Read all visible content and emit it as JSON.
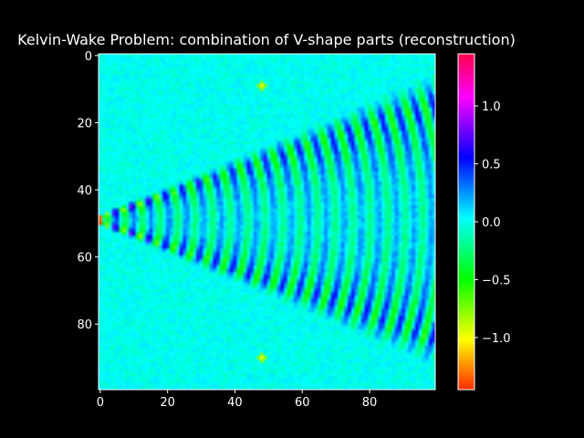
{
  "chart_data": {
    "type": "heatmap",
    "title": "Kelvin-Wake Problem: combination of V-shape parts (reconstruction)",
    "xlabel": "",
    "ylabel": "",
    "grid": false,
    "colormap": "hsv",
    "x_range": [
      0,
      99
    ],
    "y_range": [
      0,
      99
    ],
    "y_axis_inverted": true,
    "x_ticks": [
      0,
      20,
      40,
      60,
      80
    ],
    "y_ticks": [
      0,
      20,
      40,
      60,
      80
    ],
    "colorbar": {
      "vmin": -1.45,
      "vmax": 1.45,
      "ticks": [
        1.0,
        0.5,
        0.0,
        -0.5,
        -1.0
      ],
      "tick_labels": [
        "1.0",
        "0.5",
        "0.0",
        "−0.5",
        "−1.0"
      ]
    },
    "field": {
      "description_values": "wake field: V-shaped band with apex near (0, 49), opening to about (99, 15) and (99, 83); oscillating crests along x with amplitude decaying downstream; background near 0.0",
      "apex": [
        0,
        49
      ],
      "edge_top_at_x99": 15,
      "edge_bottom_at_x99": 83,
      "peak_value": 1.45,
      "min_value": -1.45,
      "background_value": 0.0,
      "bright_spots": [
        [
          48,
          9
        ],
        [
          48,
          90
        ]
      ]
    }
  }
}
